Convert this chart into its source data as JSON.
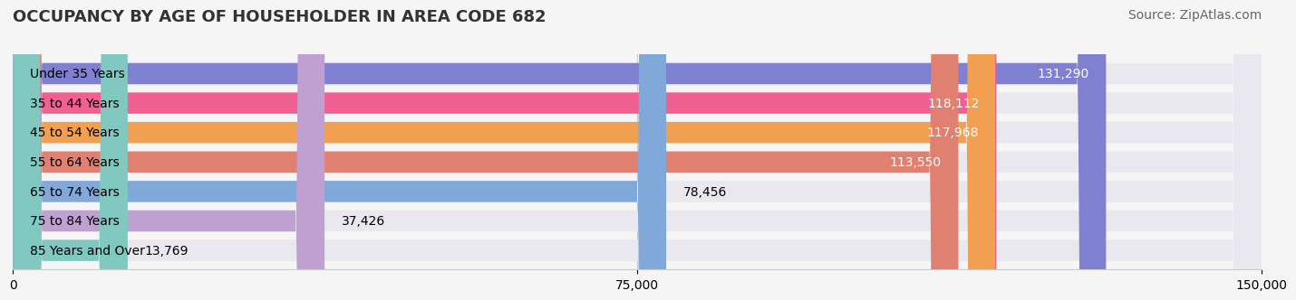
{
  "title": "OCCUPANCY BY AGE OF HOUSEHOLDER IN AREA CODE 682",
  "source": "Source: ZipAtlas.com",
  "categories": [
    "Under 35 Years",
    "35 to 44 Years",
    "45 to 54 Years",
    "55 to 64 Years",
    "65 to 74 Years",
    "75 to 84 Years",
    "85 Years and Over"
  ],
  "values": [
    131290,
    118112,
    117968,
    113550,
    78456,
    37426,
    13769
  ],
  "bar_colors": [
    "#8080d0",
    "#f06090",
    "#f0a050",
    "#e08070",
    "#80a8d8",
    "#c0a0d0",
    "#80c8c0"
  ],
  "value_colors": [
    "white",
    "white",
    "white",
    "white",
    "black",
    "black",
    "black"
  ],
  "xlim": [
    0,
    150000
  ],
  "xticks": [
    0,
    75000,
    150000
  ],
  "xticklabels": [
    "0",
    "75,000",
    "150,000"
  ],
  "background_color": "#f5f5f5",
  "bar_bg_color": "#e8e8ee",
  "title_fontsize": 13,
  "source_fontsize": 10,
  "label_fontsize": 10,
  "value_fontsize": 10
}
